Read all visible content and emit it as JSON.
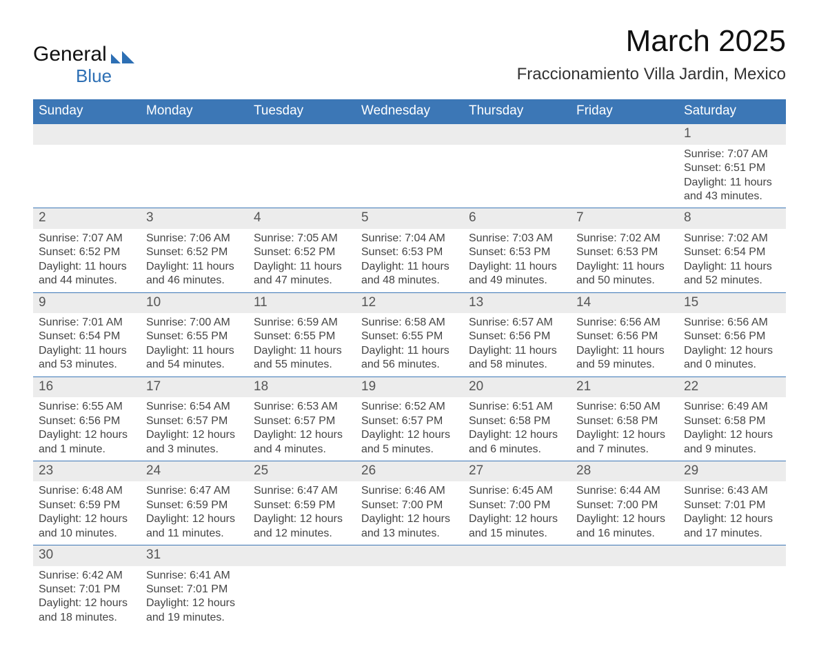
{
  "brand": {
    "name1": "General",
    "name2": "Blue",
    "logo_color": "#2d6fb4"
  },
  "title": "March 2025",
  "location": "Fraccionamiento Villa Jardin, Mexico",
  "colors": {
    "header_bg": "#3c77b6",
    "header_fg": "#ffffff",
    "daynum_bg": "#ececec",
    "text": "#444444",
    "rule": "#3c77b6"
  },
  "weekdays": [
    "Sunday",
    "Monday",
    "Tuesday",
    "Wednesday",
    "Thursday",
    "Friday",
    "Saturday"
  ],
  "weeks": [
    [
      {
        "empty": true
      },
      {
        "empty": true
      },
      {
        "empty": true
      },
      {
        "empty": true
      },
      {
        "empty": true
      },
      {
        "empty": true
      },
      {
        "day": "1",
        "sunrise": "Sunrise: 7:07 AM",
        "sunset": "Sunset: 6:51 PM",
        "daylight": "Daylight: 11 hours and 43 minutes."
      }
    ],
    [
      {
        "day": "2",
        "sunrise": "Sunrise: 7:07 AM",
        "sunset": "Sunset: 6:52 PM",
        "daylight": "Daylight: 11 hours and 44 minutes."
      },
      {
        "day": "3",
        "sunrise": "Sunrise: 7:06 AM",
        "sunset": "Sunset: 6:52 PM",
        "daylight": "Daylight: 11 hours and 46 minutes."
      },
      {
        "day": "4",
        "sunrise": "Sunrise: 7:05 AM",
        "sunset": "Sunset: 6:52 PM",
        "daylight": "Daylight: 11 hours and 47 minutes."
      },
      {
        "day": "5",
        "sunrise": "Sunrise: 7:04 AM",
        "sunset": "Sunset: 6:53 PM",
        "daylight": "Daylight: 11 hours and 48 minutes."
      },
      {
        "day": "6",
        "sunrise": "Sunrise: 7:03 AM",
        "sunset": "Sunset: 6:53 PM",
        "daylight": "Daylight: 11 hours and 49 minutes."
      },
      {
        "day": "7",
        "sunrise": "Sunrise: 7:02 AM",
        "sunset": "Sunset: 6:53 PM",
        "daylight": "Daylight: 11 hours and 50 minutes."
      },
      {
        "day": "8",
        "sunrise": "Sunrise: 7:02 AM",
        "sunset": "Sunset: 6:54 PM",
        "daylight": "Daylight: 11 hours and 52 minutes."
      }
    ],
    [
      {
        "day": "9",
        "sunrise": "Sunrise: 7:01 AM",
        "sunset": "Sunset: 6:54 PM",
        "daylight": "Daylight: 11 hours and 53 minutes."
      },
      {
        "day": "10",
        "sunrise": "Sunrise: 7:00 AM",
        "sunset": "Sunset: 6:55 PM",
        "daylight": "Daylight: 11 hours and 54 minutes."
      },
      {
        "day": "11",
        "sunrise": "Sunrise: 6:59 AM",
        "sunset": "Sunset: 6:55 PM",
        "daylight": "Daylight: 11 hours and 55 minutes."
      },
      {
        "day": "12",
        "sunrise": "Sunrise: 6:58 AM",
        "sunset": "Sunset: 6:55 PM",
        "daylight": "Daylight: 11 hours and 56 minutes."
      },
      {
        "day": "13",
        "sunrise": "Sunrise: 6:57 AM",
        "sunset": "Sunset: 6:56 PM",
        "daylight": "Daylight: 11 hours and 58 minutes."
      },
      {
        "day": "14",
        "sunrise": "Sunrise: 6:56 AM",
        "sunset": "Sunset: 6:56 PM",
        "daylight": "Daylight: 11 hours and 59 minutes."
      },
      {
        "day": "15",
        "sunrise": "Sunrise: 6:56 AM",
        "sunset": "Sunset: 6:56 PM",
        "daylight": "Daylight: 12 hours and 0 minutes."
      }
    ],
    [
      {
        "day": "16",
        "sunrise": "Sunrise: 6:55 AM",
        "sunset": "Sunset: 6:56 PM",
        "daylight": "Daylight: 12 hours and 1 minute."
      },
      {
        "day": "17",
        "sunrise": "Sunrise: 6:54 AM",
        "sunset": "Sunset: 6:57 PM",
        "daylight": "Daylight: 12 hours and 3 minutes."
      },
      {
        "day": "18",
        "sunrise": "Sunrise: 6:53 AM",
        "sunset": "Sunset: 6:57 PM",
        "daylight": "Daylight: 12 hours and 4 minutes."
      },
      {
        "day": "19",
        "sunrise": "Sunrise: 6:52 AM",
        "sunset": "Sunset: 6:57 PM",
        "daylight": "Daylight: 12 hours and 5 minutes."
      },
      {
        "day": "20",
        "sunrise": "Sunrise: 6:51 AM",
        "sunset": "Sunset: 6:58 PM",
        "daylight": "Daylight: 12 hours and 6 minutes."
      },
      {
        "day": "21",
        "sunrise": "Sunrise: 6:50 AM",
        "sunset": "Sunset: 6:58 PM",
        "daylight": "Daylight: 12 hours and 7 minutes."
      },
      {
        "day": "22",
        "sunrise": "Sunrise: 6:49 AM",
        "sunset": "Sunset: 6:58 PM",
        "daylight": "Daylight: 12 hours and 9 minutes."
      }
    ],
    [
      {
        "day": "23",
        "sunrise": "Sunrise: 6:48 AM",
        "sunset": "Sunset: 6:59 PM",
        "daylight": "Daylight: 12 hours and 10 minutes."
      },
      {
        "day": "24",
        "sunrise": "Sunrise: 6:47 AM",
        "sunset": "Sunset: 6:59 PM",
        "daylight": "Daylight: 12 hours and 11 minutes."
      },
      {
        "day": "25",
        "sunrise": "Sunrise: 6:47 AM",
        "sunset": "Sunset: 6:59 PM",
        "daylight": "Daylight: 12 hours and 12 minutes."
      },
      {
        "day": "26",
        "sunrise": "Sunrise: 6:46 AM",
        "sunset": "Sunset: 7:00 PM",
        "daylight": "Daylight: 12 hours and 13 minutes."
      },
      {
        "day": "27",
        "sunrise": "Sunrise: 6:45 AM",
        "sunset": "Sunset: 7:00 PM",
        "daylight": "Daylight: 12 hours and 15 minutes."
      },
      {
        "day": "28",
        "sunrise": "Sunrise: 6:44 AM",
        "sunset": "Sunset: 7:00 PM",
        "daylight": "Daylight: 12 hours and 16 minutes."
      },
      {
        "day": "29",
        "sunrise": "Sunrise: 6:43 AM",
        "sunset": "Sunset: 7:01 PM",
        "daylight": "Daylight: 12 hours and 17 minutes."
      }
    ],
    [
      {
        "day": "30",
        "sunrise": "Sunrise: 6:42 AM",
        "sunset": "Sunset: 7:01 PM",
        "daylight": "Daylight: 12 hours and 18 minutes."
      },
      {
        "day": "31",
        "sunrise": "Sunrise: 6:41 AM",
        "sunset": "Sunset: 7:01 PM",
        "daylight": "Daylight: 12 hours and 19 minutes."
      },
      {
        "empty": true
      },
      {
        "empty": true
      },
      {
        "empty": true
      },
      {
        "empty": true
      },
      {
        "empty": true
      }
    ]
  ]
}
